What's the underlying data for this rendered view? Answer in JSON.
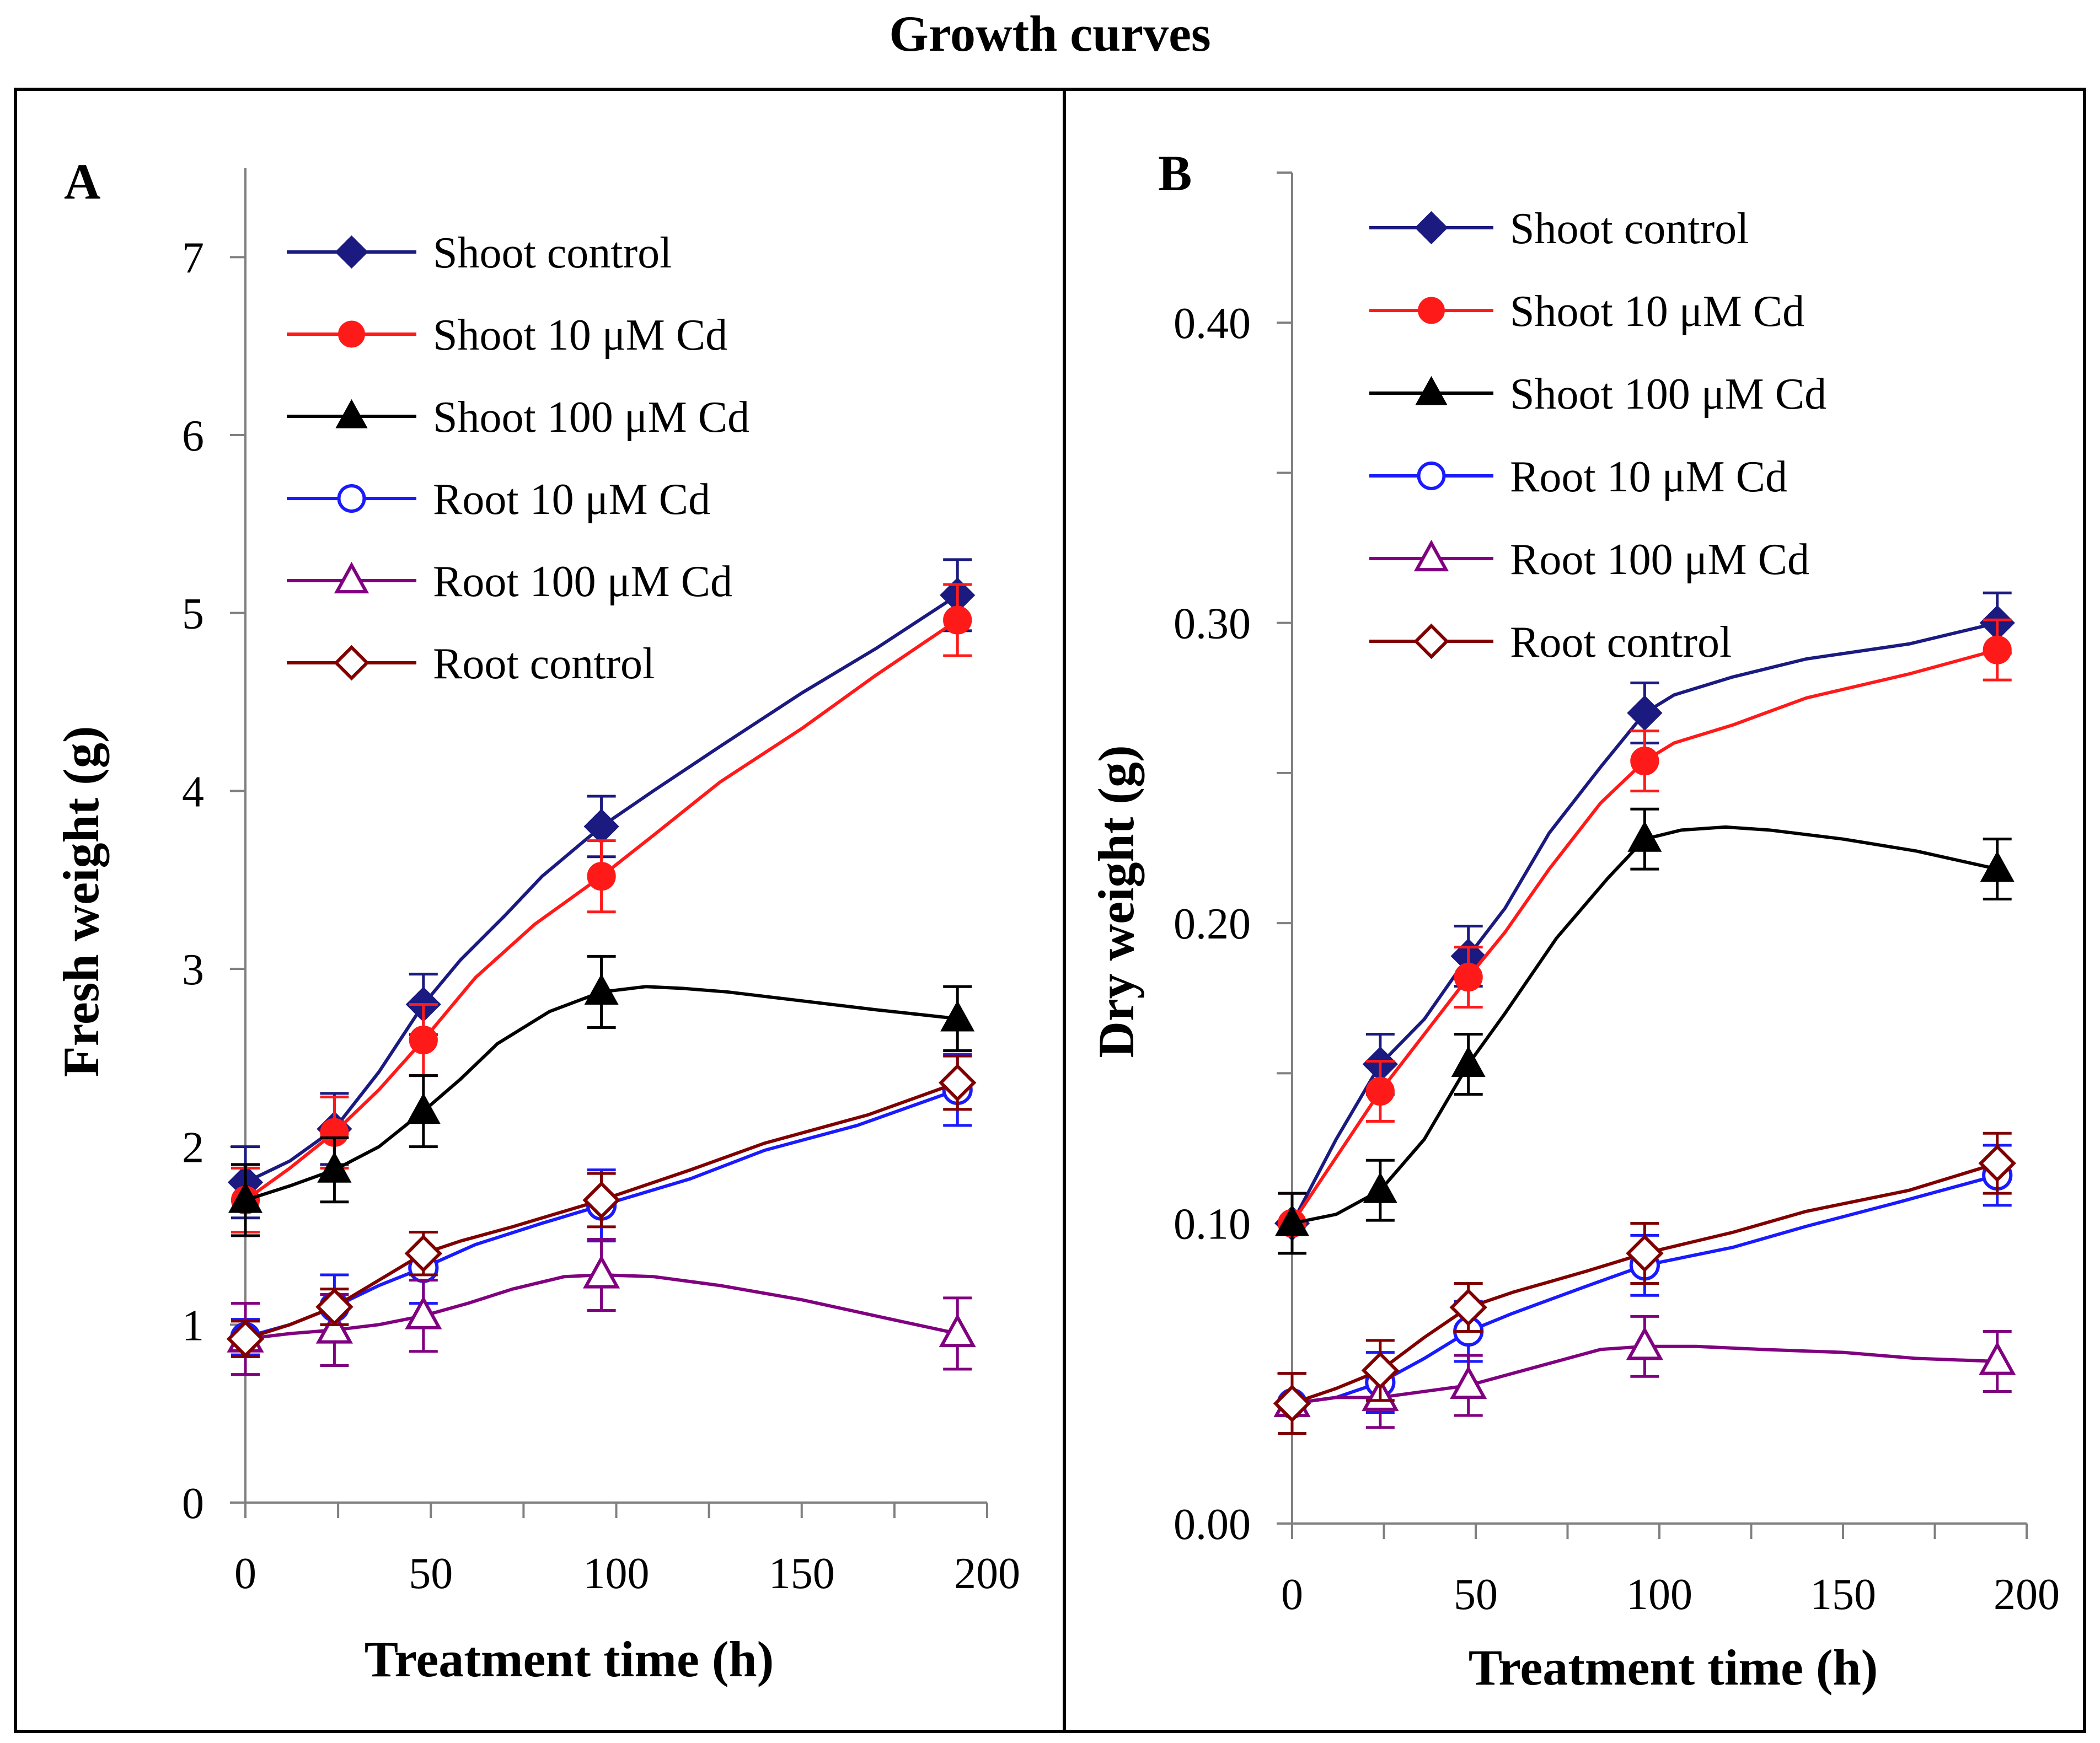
{
  "title": "Growth curves",
  "colors": {
    "shoot_control": "#1a1a80",
    "shoot_10": "#ff1a1a",
    "shoot_100": "#000000",
    "root_10": "#1a1aff",
    "root_100": "#800080",
    "root_control": "#800000"
  },
  "chart_data": [
    {
      "type": "line",
      "panel_label": "A",
      "xlabel": "Treatment time (h)",
      "ylabel": "Fresh weight (g)",
      "xlim": [
        0,
        200
      ],
      "ylim": [
        0,
        7.5
      ],
      "xticks": [
        0,
        50,
        100,
        150,
        200
      ],
      "xtick_labels": [
        "0",
        "50",
        "100",
        "150",
        "200"
      ],
      "yticks": [
        0,
        1,
        2,
        3,
        4,
        5,
        6,
        7
      ],
      "ytick_labels": [
        "0",
        "1",
        "2",
        "3",
        "4",
        "5",
        "6",
        "7"
      ],
      "legend_position": "top-left",
      "series": [
        {
          "name": "Shoot control",
          "color_key": "shoot_control",
          "marker": "diamond-filled",
          "x": [
            0,
            24,
            48,
            96,
            192
          ],
          "y": [
            1.8,
            2.1,
            2.8,
            3.8,
            5.1
          ],
          "err": [
            0.2,
            0.2,
            0.17,
            0.17,
            0.2
          ],
          "curve": [
            [
              0,
              1.8
            ],
            [
              12,
              1.92
            ],
            [
              24,
              2.1
            ],
            [
              36,
              2.42
            ],
            [
              48,
              2.8
            ],
            [
              58,
              3.05
            ],
            [
              70,
              3.3
            ],
            [
              80,
              3.52
            ],
            [
              96,
              3.8
            ],
            [
              110,
              4.0
            ],
            [
              128,
              4.25
            ],
            [
              150,
              4.55
            ],
            [
              170,
              4.8
            ],
            [
              192,
              5.1
            ]
          ]
        },
        {
          "name": "Shoot 10 μM Cd",
          "color_key": "shoot_10",
          "marker": "circle-filled",
          "x": [
            0,
            24,
            48,
            96,
            192
          ],
          "y": [
            1.7,
            2.08,
            2.6,
            3.52,
            4.96
          ],
          "err": [
            0.18,
            0.2,
            0.2,
            0.2,
            0.2
          ],
          "curve": [
            [
              0,
              1.7
            ],
            [
              12,
              1.88
            ],
            [
              24,
              2.08
            ],
            [
              36,
              2.32
            ],
            [
              48,
              2.6
            ],
            [
              62,
              2.95
            ],
            [
              78,
              3.25
            ],
            [
              96,
              3.52
            ],
            [
              110,
              3.75
            ],
            [
              128,
              4.05
            ],
            [
              150,
              4.35
            ],
            [
              170,
              4.65
            ],
            [
              192,
              4.96
            ]
          ]
        },
        {
          "name": "Shoot 100 μM Cd",
          "color_key": "shoot_100",
          "marker": "triangle-filled",
          "x": [
            0,
            24,
            48,
            96,
            192
          ],
          "y": [
            1.7,
            1.87,
            2.2,
            2.87,
            2.72
          ],
          "err": [
            0.2,
            0.18,
            0.2,
            0.2,
            0.18
          ],
          "curve": [
            [
              0,
              1.7
            ],
            [
              12,
              1.78
            ],
            [
              24,
              1.87
            ],
            [
              36,
              2.0
            ],
            [
              48,
              2.2
            ],
            [
              58,
              2.38
            ],
            [
              68,
              2.58
            ],
            [
              82,
              2.76
            ],
            [
              96,
              2.87
            ],
            [
              108,
              2.9
            ],
            [
              118,
              2.89
            ],
            [
              130,
              2.87
            ],
            [
              150,
              2.82
            ],
            [
              170,
              2.77
            ],
            [
              192,
              2.72
            ]
          ]
        },
        {
          "name": "Root 10 μM Cd",
          "color_key": "root_10",
          "marker": "circle-open",
          "x": [
            0,
            24,
            48,
            96,
            192
          ],
          "y": [
            0.93,
            1.1,
            1.32,
            1.67,
            2.32
          ],
          "err": [
            0.1,
            0.18,
            0.2,
            0.2,
            0.2
          ],
          "curve": [
            [
              0,
              0.93
            ],
            [
              12,
              1.0
            ],
            [
              24,
              1.1
            ],
            [
              36,
              1.22
            ],
            [
              48,
              1.32
            ],
            [
              62,
              1.45
            ],
            [
              80,
              1.57
            ],
            [
              96,
              1.67
            ],
            [
              120,
              1.82
            ],
            [
              140,
              1.98
            ],
            [
              165,
              2.12
            ],
            [
              192,
              2.32
            ]
          ]
        },
        {
          "name": "Root 100 μM Cd",
          "color_key": "root_100",
          "marker": "triangle-open",
          "x": [
            0,
            24,
            48,
            96,
            192
          ],
          "y": [
            0.92,
            0.97,
            1.05,
            1.28,
            0.95
          ],
          "err": [
            0.2,
            0.2,
            0.2,
            0.2,
            0.2
          ],
          "curve": [
            [
              0,
              0.92
            ],
            [
              12,
              0.95
            ],
            [
              24,
              0.97
            ],
            [
              36,
              1.0
            ],
            [
              48,
              1.05
            ],
            [
              60,
              1.12
            ],
            [
              72,
              1.2
            ],
            [
              86,
              1.27
            ],
            [
              96,
              1.28
            ],
            [
              110,
              1.27
            ],
            [
              128,
              1.22
            ],
            [
              150,
              1.14
            ],
            [
              172,
              1.04
            ],
            [
              192,
              0.95
            ]
          ]
        },
        {
          "name": "Root control",
          "color_key": "root_control",
          "marker": "diamond-open",
          "x": [
            0,
            24,
            48,
            96,
            192
          ],
          "y": [
            0.92,
            1.1,
            1.4,
            1.7,
            2.36
          ],
          "err": [
            0.1,
            0.1,
            0.12,
            0.15,
            0.15
          ],
          "curve": [
            [
              0,
              0.92
            ],
            [
              12,
              1.0
            ],
            [
              24,
              1.1
            ],
            [
              36,
              1.25
            ],
            [
              48,
              1.4
            ],
            [
              58,
              1.47
            ],
            [
              72,
              1.55
            ],
            [
              96,
              1.7
            ],
            [
              120,
              1.87
            ],
            [
              140,
              2.02
            ],
            [
              168,
              2.18
            ],
            [
              192,
              2.36
            ]
          ]
        }
      ]
    },
    {
      "type": "line",
      "panel_label": "B",
      "xlabel": "Treatment time (h)",
      "ylabel": "Dry weight (g)",
      "xlim": [
        0,
        200
      ],
      "ylim": [
        0,
        0.45
      ],
      "xticks": [
        0,
        50,
        100,
        150,
        200
      ],
      "xtick_labels": [
        "0",
        "50",
        "100",
        "150",
        "200"
      ],
      "yticks": [
        0,
        0.05,
        0.1,
        0.15,
        0.2,
        0.25,
        0.3,
        0.35,
        0.4,
        0.45
      ],
      "ytick_labels": [
        "0.00",
        "",
        "0.10",
        "",
        "0.20",
        "",
        "0.30",
        "",
        "0.40",
        ""
      ],
      "legend_position": "top-left",
      "series": [
        {
          "name": "Shoot control",
          "color_key": "shoot_control",
          "marker": "diamond-filled",
          "x": [
            0,
            24,
            48,
            96,
            192
          ],
          "y": [
            0.1,
            0.153,
            0.189,
            0.27,
            0.3
          ],
          "err": [
            0.01,
            0.01,
            0.01,
            0.01,
            0.01
          ],
          "curve": [
            [
              0,
              0.1
            ],
            [
              12,
              0.128
            ],
            [
              24,
              0.153
            ],
            [
              36,
              0.168
            ],
            [
              48,
              0.189
            ],
            [
              58,
              0.205
            ],
            [
              70,
              0.23
            ],
            [
              84,
              0.252
            ],
            [
              96,
              0.27
            ],
            [
              104,
              0.276
            ],
            [
              120,
              0.282
            ],
            [
              140,
              0.288
            ],
            [
              168,
              0.293
            ],
            [
              192,
              0.3
            ]
          ]
        },
        {
          "name": "Shoot 10 μM Cd",
          "color_key": "shoot_10",
          "marker": "circle-filled",
          "x": [
            0,
            24,
            48,
            96,
            192
          ],
          "y": [
            0.1,
            0.144,
            0.182,
            0.254,
            0.291
          ],
          "err": [
            0.01,
            0.01,
            0.01,
            0.01,
            0.01
          ],
          "curve": [
            [
              0,
              0.1
            ],
            [
              12,
              0.122
            ],
            [
              24,
              0.144
            ],
            [
              36,
              0.163
            ],
            [
              48,
              0.182
            ],
            [
              58,
              0.197
            ],
            [
              70,
              0.218
            ],
            [
              84,
              0.24
            ],
            [
              96,
              0.254
            ],
            [
              104,
              0.26
            ],
            [
              120,
              0.266
            ],
            [
              140,
              0.275
            ],
            [
              168,
              0.283
            ],
            [
              192,
              0.291
            ]
          ]
        },
        {
          "name": "Shoot 100 μM Cd",
          "color_key": "shoot_100",
          "marker": "triangle-filled",
          "x": [
            0,
            24,
            48,
            96,
            192
          ],
          "y": [
            0.1,
            0.111,
            0.153,
            0.228,
            0.218
          ],
          "err": [
            0.01,
            0.01,
            0.01,
            0.01,
            0.01
          ],
          "curve": [
            [
              0,
              0.1
            ],
            [
              12,
              0.103
            ],
            [
              24,
              0.111
            ],
            [
              36,
              0.128
            ],
            [
              48,
              0.153
            ],
            [
              58,
              0.17
            ],
            [
              72,
              0.195
            ],
            [
              86,
              0.215
            ],
            [
              96,
              0.228
            ],
            [
              106,
              0.231
            ],
            [
              118,
              0.232
            ],
            [
              130,
              0.231
            ],
            [
              150,
              0.228
            ],
            [
              170,
              0.224
            ],
            [
              192,
              0.218
            ]
          ]
        },
        {
          "name": "Root 10 μM Cd",
          "color_key": "root_10",
          "marker": "circle-open",
          "x": [
            0,
            24,
            48,
            96,
            192
          ],
          "y": [
            0.04,
            0.047,
            0.064,
            0.086,
            0.116
          ],
          "err": [
            0.01,
            0.01,
            0.01,
            0.01,
            0.01
          ],
          "curve": [
            [
              0,
              0.04
            ],
            [
              12,
              0.042
            ],
            [
              24,
              0.047
            ],
            [
              36,
              0.055
            ],
            [
              48,
              0.064
            ],
            [
              60,
              0.07
            ],
            [
              80,
              0.079
            ],
            [
              96,
              0.086
            ],
            [
              120,
              0.092
            ],
            [
              140,
              0.099
            ],
            [
              165,
              0.107
            ],
            [
              192,
              0.116
            ]
          ]
        },
        {
          "name": "Root 100 μM Cd",
          "color_key": "root_100",
          "marker": "triangle-open",
          "x": [
            0,
            24,
            48,
            96,
            192
          ],
          "y": [
            0.04,
            0.042,
            0.046,
            0.059,
            0.054
          ],
          "err": [
            0.01,
            0.01,
            0.01,
            0.01,
            0.01
          ],
          "curve": [
            [
              0,
              0.04
            ],
            [
              12,
              0.042
            ],
            [
              24,
              0.042
            ],
            [
              36,
              0.044
            ],
            [
              48,
              0.046
            ],
            [
              60,
              0.05
            ],
            [
              72,
              0.054
            ],
            [
              84,
              0.058
            ],
            [
              96,
              0.059
            ],
            [
              110,
              0.059
            ],
            [
              128,
              0.058
            ],
            [
              150,
              0.057
            ],
            [
              170,
              0.055
            ],
            [
              192,
              0.054
            ]
          ]
        },
        {
          "name": "Root control",
          "color_key": "root_control",
          "marker": "diamond-open",
          "x": [
            0,
            24,
            48,
            96,
            192
          ],
          "y": [
            0.04,
            0.051,
            0.072,
            0.09,
            0.12
          ],
          "err": [
            0.01,
            0.01,
            0.008,
            0.01,
            0.01
          ],
          "curve": [
            [
              0,
              0.04
            ],
            [
              12,
              0.045
            ],
            [
              24,
              0.051
            ],
            [
              36,
              0.062
            ],
            [
              48,
              0.072
            ],
            [
              60,
              0.077
            ],
            [
              80,
              0.084
            ],
            [
              96,
              0.09
            ],
            [
              120,
              0.097
            ],
            [
              140,
              0.104
            ],
            [
              168,
              0.111
            ],
            [
              192,
              0.12
            ]
          ]
        }
      ]
    }
  ]
}
